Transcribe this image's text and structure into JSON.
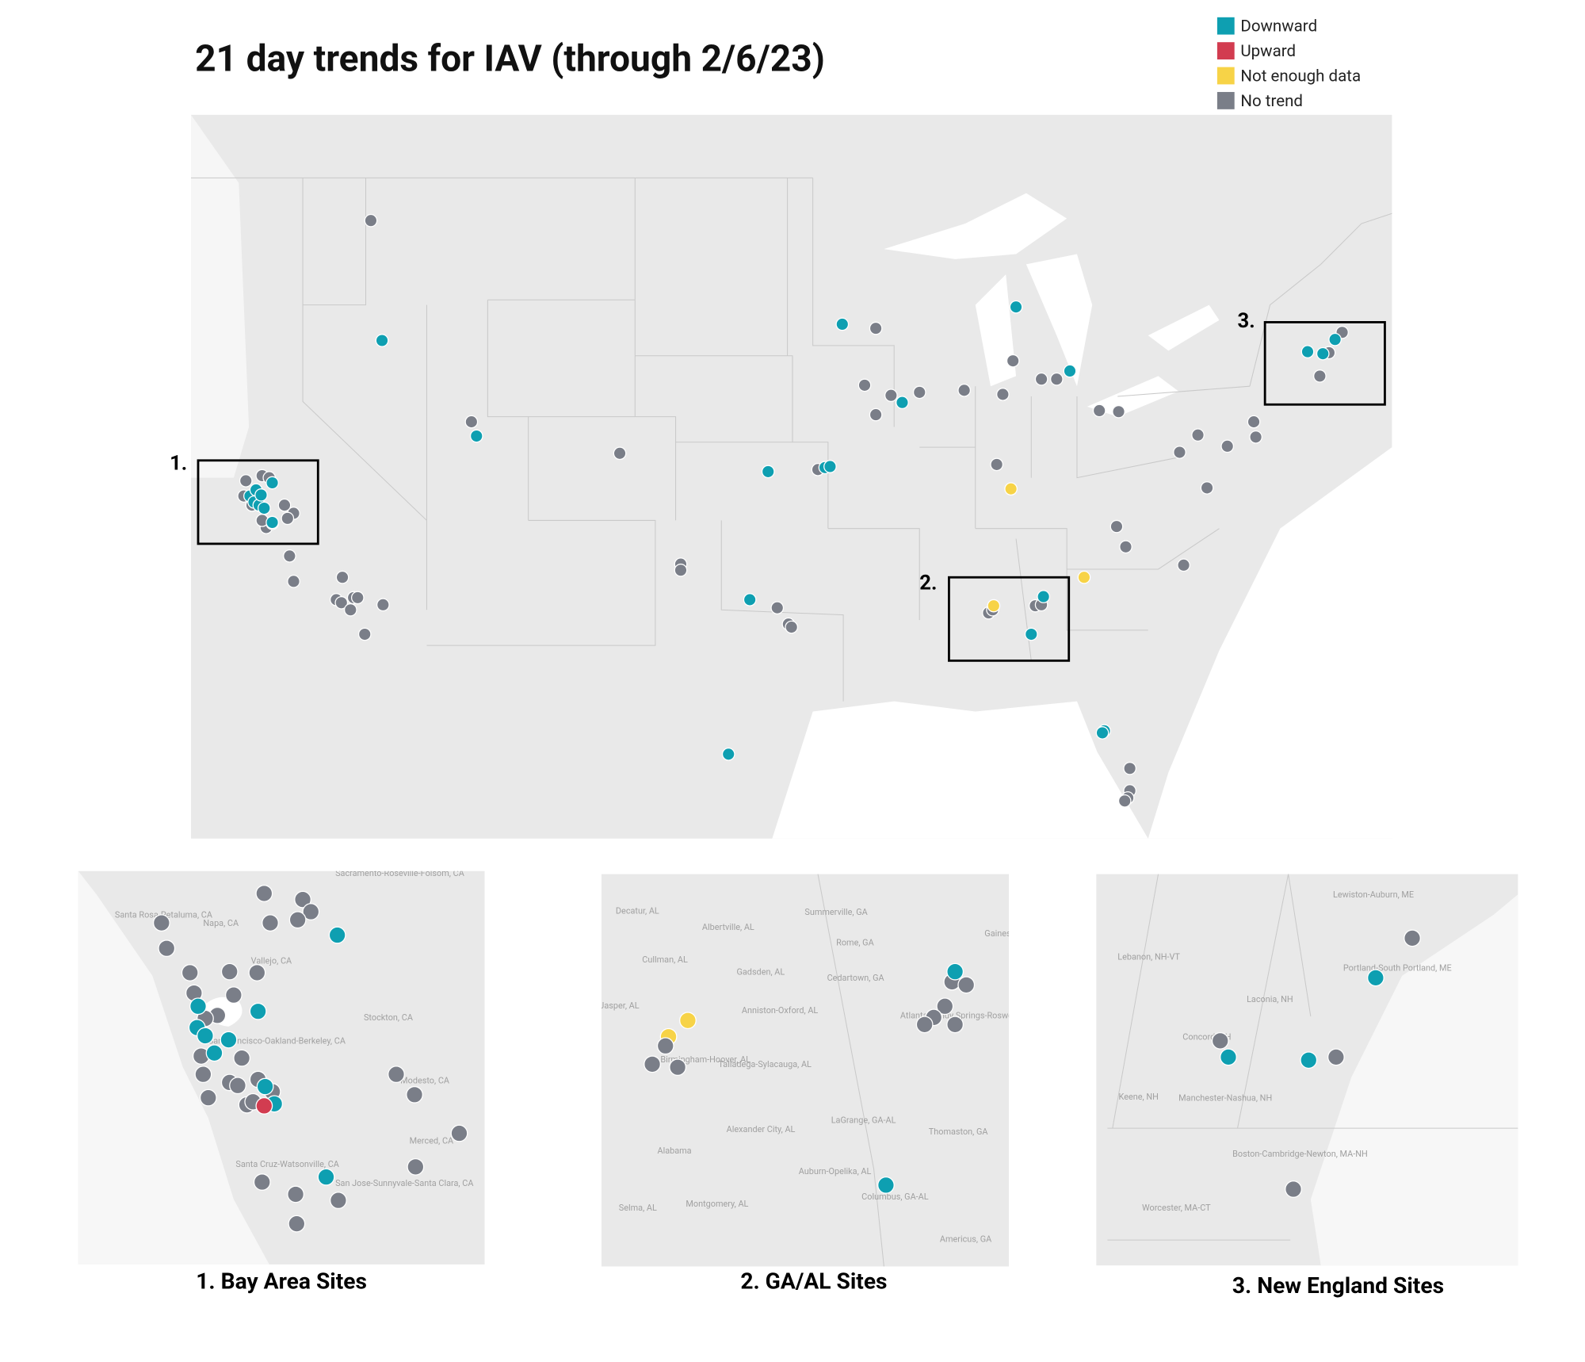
{
  "title": "21 day trends for IAV (through 2/6/23)",
  "legend": [
    {
      "label": "Downward",
      "color": "#0e9fb1"
    },
    {
      "label": "Upward",
      "color": "#d23c50"
    },
    {
      "label": "Not enough data",
      "color": "#f7d347"
    },
    {
      "label": "No trend",
      "color": "#7a7e88"
    }
  ],
  "main_map": {
    "region_labels": [
      "1.",
      "2.",
      "3."
    ]
  },
  "insets": [
    {
      "title": "1. Bay Area Sites",
      "places": [
        "Sacramento-Roseville-Folsom, CA",
        "Santa Rosa-Petaluma, CA",
        "Napa, CA",
        "Vallejo, CA",
        "Stockton, CA",
        "San Francisco-Oakland-Berkeley, CA",
        "Modesto, CA",
        "Merced, CA",
        "Santa Cruz-Watsonville, CA",
        "San Jose-Sunnyvale-Santa Clara, CA"
      ]
    },
    {
      "title": "2. GA/AL Sites",
      "places": [
        "Decatur, AL",
        "Albertville, AL",
        "Summerville, GA",
        "Rome, GA",
        "Gainesville, GA",
        "Cullman, AL",
        "Gadsden, AL",
        "Cedartown, GA",
        "Jasper, AL",
        "Anniston-Oxford, AL",
        "Atlanta-Sandy Springs-Roswell, GA",
        "Birmingham-Hoover, AL",
        "Talladega-Sylacauga, AL",
        "Alexander City, AL",
        "LaGrange, GA-AL",
        "Thomaston, GA",
        "Alabama",
        "Auburn-Opelika, AL",
        "Columbus, GA-AL",
        "Selma, AL",
        "Montgomery, AL",
        "Americus, GA"
      ]
    },
    {
      "title": "3. New England Sites",
      "places": [
        "Lewiston-Auburn, ME",
        "Lebanon, NH-VT",
        "Portland-South Portland, ME",
        "Laconia, NH",
        "Concord, NH",
        "Keene, NH",
        "Manchester-Nashua, NH",
        "Boston-Cambridge-Newton, MA-NH",
        "Worcester, MA-CT"
      ]
    }
  ]
}
